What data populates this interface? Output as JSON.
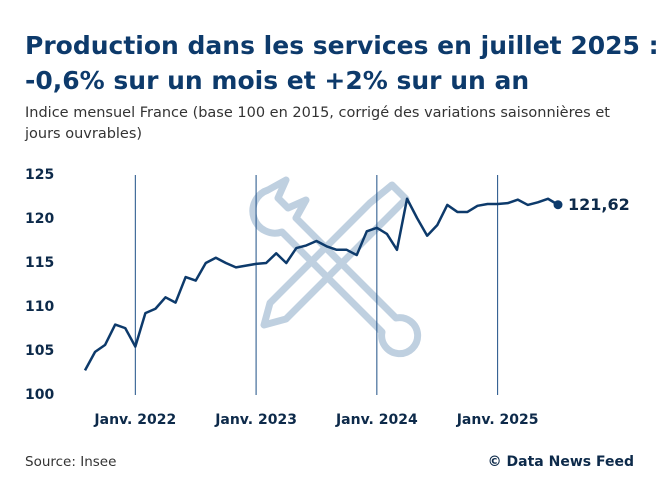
{
  "chart_data": {
    "type": "line",
    "title": "Production dans les services en juillet 2025 :",
    "title_line2": "-0,6% sur un mois et +2% sur un an",
    "subtitle": "Indice mensuel France (base 100 en 2015, corrigé des variations saisonnières et",
    "subtitle_line2": "jours ouvrables)",
    "source": "Source: Insee",
    "credit": "© Data News Feed",
    "color": "#0d3a6b",
    "grid_color": "#1d4f86",
    "categories": [
      null,
      null,
      null,
      null,
      null,
      "Janv. 2022",
      null,
      null,
      null,
      null,
      null,
      null,
      null,
      null,
      null,
      null,
      null,
      "Janv. 2023",
      null,
      null,
      null,
      null,
      null,
      null,
      null,
      null,
      null,
      null,
      null,
      "Janv. 2024",
      null,
      null,
      null,
      null,
      null,
      null,
      null,
      null,
      null,
      null,
      null,
      "Janv. 2025",
      null,
      null,
      null,
      null,
      null,
      null
    ],
    "values": [
      102.8,
      104.9,
      105.7,
      108.0,
      107.6,
      105.5,
      109.3,
      109.8,
      111.1,
      110.5,
      113.4,
      113.0,
      115.0,
      115.6,
      115.0,
      114.5,
      114.7,
      114.9,
      115.0,
      116.1,
      115.0,
      116.7,
      117.0,
      117.5,
      116.9,
      116.5,
      116.5,
      115.9,
      118.6,
      119.0,
      118.3,
      116.5,
      122.3,
      120.1,
      118.1,
      119.3,
      121.6,
      120.8,
      120.8,
      121.5,
      121.7,
      121.7,
      121.8,
      122.2,
      121.6,
      121.9,
      122.3,
      121.62
    ],
    "value_labels": [
      null,
      null,
      null,
      null,
      null,
      null,
      null,
      null,
      null,
      null,
      null,
      null,
      null,
      null,
      null,
      null,
      null,
      null,
      null,
      null,
      null,
      null,
      null,
      null,
      null,
      null,
      null,
      null,
      null,
      null,
      null,
      null,
      null,
      null,
      null,
      null,
      null,
      null,
      null,
      null,
      null,
      null,
      null,
      null,
      null,
      null,
      null,
      "121,62"
    ],
    "ylim": [
      100,
      125
    ],
    "yticks": [
      100,
      105,
      110,
      115,
      120,
      125
    ]
  }
}
